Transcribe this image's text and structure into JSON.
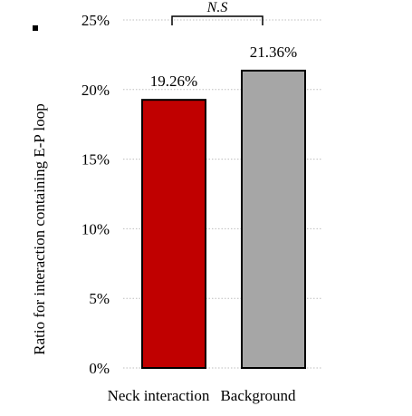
{
  "chart_data": {
    "type": "bar",
    "categories": [
      "Neck interaction",
      "Background"
    ],
    "values": [
      19.26,
      21.36
    ],
    "value_labels": [
      "19.26%",
      "21.36%"
    ],
    "bar_colors": [
      "#c00000",
      "#a6a6a6"
    ],
    "ylabel": "Ratio for interaction containing E-P loop",
    "xlabel": "",
    "title": "",
    "ylim": [
      0,
      25
    ],
    "yticks": [
      0,
      5,
      10,
      15,
      20,
      25
    ],
    "ytick_labels": [
      "0%",
      "5%",
      "10%",
      "15%",
      "20%",
      "25%"
    ],
    "grid": true,
    "grid_style": "dotted",
    "significance": {
      "label": "N.S",
      "between": [
        0,
        1
      ]
    }
  }
}
